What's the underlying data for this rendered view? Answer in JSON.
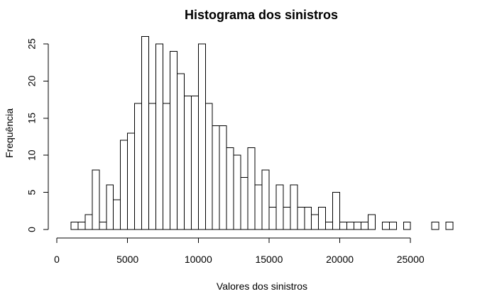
{
  "chart_data": {
    "type": "bar",
    "title": "Histograma dos sinistros",
    "xlabel": "Valores dos sinistros",
    "ylabel": "Frequência",
    "bin_start": 1000,
    "bin_width": 500,
    "values": [
      1,
      1,
      2,
      8,
      1,
      6,
      4,
      12,
      13,
      17,
      26,
      17,
      25,
      17,
      24,
      21,
      18,
      18,
      25,
      17,
      14,
      14,
      11,
      10,
      7,
      11,
      6,
      8,
      3,
      6,
      3,
      6,
      3,
      3,
      2,
      3,
      1,
      5,
      1,
      1,
      1,
      1,
      2,
      0,
      1,
      1,
      0,
      1,
      0,
      0,
      0,
      1,
      0,
      1
    ],
    "xlim": [
      0,
      28000
    ],
    "ylim": [
      0,
      26
    ],
    "xticks": [
      0,
      5000,
      10000,
      15000,
      20000,
      25000
    ],
    "xtick_labels": [
      "0",
      "5000",
      "10000",
      "15000",
      "20000",
      "25000"
    ],
    "yticks": [
      0,
      5,
      10,
      15,
      20,
      25
    ],
    "ytick_labels": [
      "0",
      "5",
      "10",
      "15",
      "20",
      "25"
    ],
    "grid": false,
    "bar_fill": "#ffffff",
    "bar_stroke": "#000000"
  }
}
